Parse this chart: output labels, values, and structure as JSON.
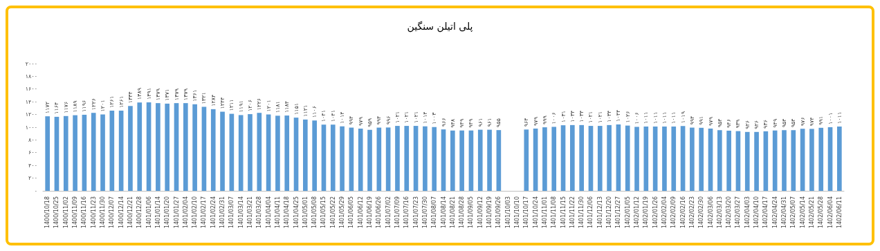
{
  "chart_data": {
    "type": "bar",
    "title": "پلی اتیلن سنگین",
    "categories": [
      "1400/10/18",
      "1400/10/25",
      "1400/11/02",
      "1400/11/09",
      "1400/11/16",
      "1400/11/23",
      "1400/11/30",
      "1400/12/07",
      "1400/12/14",
      "1400/12/21",
      "1400/12/28",
      "1401/01/06",
      "1401/01/14",
      "1401/01/20",
      "1401/01/27",
      "1401/02/04",
      "1401/02/10",
      "1401/02/17",
      "1401/02/24",
      "1401/02/31",
      "1401/03/07",
      "1401/03/14",
      "1401/03/21",
      "1401/03/28",
      "1401/04/04",
      "1401/04/11",
      "1401/04/18",
      "1401/04/25",
      "1401/05/01",
      "1401/05/08",
      "1401/05/15",
      "1401/05/22",
      "1401/05/29",
      "1401/06/05",
      "1401/06/12",
      "1401/06/19",
      "1401/06/26",
      "1401/07/02",
      "1401/07/09",
      "1401/07/16",
      "1401/07/23",
      "1401/07/30",
      "1401/08/07",
      "1401/08/14",
      "1401/08/21",
      "1401/08/28",
      "1401/09/05",
      "1401/09/12",
      "1401/09/19",
      "1401/09/26",
      "1401/10/03",
      "1401/10/10",
      "1401/10/17",
      "1401/10/24",
      "1401/11/01",
      "1401/11/08",
      "1401/11/15",
      "1401/11/22",
      "1401/11/30",
      "1401/12/06",
      "1401/12/13",
      "1401/12/20",
      "1401/12/27",
      "1402/01/05",
      "1402/01/12",
      "1402/01/19",
      "1402/01/26",
      "1402/02/04",
      "1402/02/09",
      "1402/02/16",
      "1402/02/23",
      "1402/02/30",
      "1402/03/06",
      "1402/03/13",
      "1402/03/20",
      "1402/03/27",
      "1402/04/03",
      "1402/04/10",
      "1402/04/17",
      "1402/04/24",
      "1402/04/31",
      "1402/05/07",
      "1402/05/14",
      "1402/05/21",
      "1402/05/28",
      "1402/06/04",
      "1402/06/11"
    ],
    "values": [
      1172,
      1164,
      1176,
      1189,
      1196,
      1226,
      1201,
      1261,
      1261,
      1334,
      1389,
      1391,
      1379,
      1371,
      1379,
      1379,
      1361,
      1321,
      1284,
      1244,
      1211,
      1191,
      1206,
      1226,
      1201,
      1181,
      1184,
      1151,
      1121,
      1106,
      1041,
      1041,
      1014,
      994,
      979,
      959,
      994,
      996,
      1021,
      1021,
      1021,
      1014,
      1003,
      966,
      948,
      949,
      949,
      961,
      961,
      955,
      null,
      null,
      964,
      979,
      999,
      1006,
      1031,
      1034,
      1034,
      1021,
      1021,
      1034,
      1044,
      1026,
      1006,
      1011,
      1011,
      1011,
      1011,
      1019,
      994,
      991,
      979,
      954,
      946,
      939,
      926,
      926,
      936,
      949,
      954,
      954,
      976,
      974,
      991,
      1001,
      1011
    ],
    "value_labels": [
      "۱۱۷۲",
      "۱۱۶۴",
      "۱۱۷۶",
      "۱۱۸۹",
      "۱۱۹۶",
      "۱۲۲۶",
      "۱۲۰۱",
      "۱۲۶۱",
      "۱۲۶۱",
      "۱۳۳۴",
      "۱۳۸۹",
      "۱۳۹۱",
      "۱۳۷۹",
      "۱۳۷۱",
      "۱۳۷۹",
      "۱۳۷۹",
      "۱۳۶۱",
      "۱۳۲۱",
      "۱۲۸۴",
      "۱۲۴۴",
      "۱۲۱۱",
      "۱۱۹۱",
      "۱۲۰۶",
      "۱۲۲۶",
      "۱۲۰۱",
      "۱۱۸۱",
      "۱۱۸۴",
      "۱۱۵۱",
      "۱۱۲۱",
      "۱۱۰۶",
      "۱۰۴۱",
      "۱۰۴۱",
      "۱۰۱۴",
      "۹۹۴",
      "۹۷۹",
      "۹۵۹",
      "۹۹۴",
      "۹۹۶",
      "۱۰۲۱",
      "۱۰۲۱",
      "۱۰۲۱",
      "۱۰۱۴",
      "۱۰۰۳",
      "۹۶۶",
      "۹۴۸",
      "۹۴۹",
      "۹۴۹",
      "۹۶۱",
      "۹۶۱",
      "۹۵۵",
      null,
      null,
      "۹۶۴",
      "۹۷۹",
      "۹۹۹",
      "۱۰۰۶",
      "۱۰۳۱",
      "۱۰۳۴",
      "۱۰۳۴",
      "۱۰۲۱",
      "۱۰۲۱",
      "۱۰۳۴",
      "۱۰۴۴",
      "۱۰۲۶",
      "۱۰۰۶",
      "۱۰۱۱",
      "۱۰۱۱",
      "۱۰۱۱",
      "۱۰۱۱",
      "۱۰۱۹",
      "۹۹۴",
      "۹۹۱",
      "۹۷۹",
      "۹۵۴",
      "۹۴۶",
      "۹۳۹",
      "۹۲۶",
      "۹۲۶",
      "۹۳۶",
      "۹۴۹",
      "۹۵۴",
      "۹۵۴",
      "۹۷۶",
      "۹۷۴",
      "۹۹۱",
      "۱۰۰۱",
      "۱۰۱۱"
    ],
    "color": "#5b9bd5",
    "ylim": [
      0,
      2000
    ],
    "yticks": [
      {
        "value": 0,
        "label": "۰"
      },
      {
        "value": 200,
        "label": "۲۰۰"
      },
      {
        "value": 400,
        "label": "۴۰۰"
      },
      {
        "value": 600,
        "label": "۶۰۰"
      },
      {
        "value": 800,
        "label": "۸۰۰"
      },
      {
        "value": 1000,
        "label": "۱۰۰۰"
      },
      {
        "value": 1200,
        "label": "۱۲۰۰"
      },
      {
        "value": 1400,
        "label": "۱۴۰۰"
      },
      {
        "value": 1600,
        "label": "۱۶۰۰"
      },
      {
        "value": 1800,
        "label": "۱۸۰۰"
      },
      {
        "value": 2000,
        "label": "۲۰۰۰"
      }
    ]
  }
}
